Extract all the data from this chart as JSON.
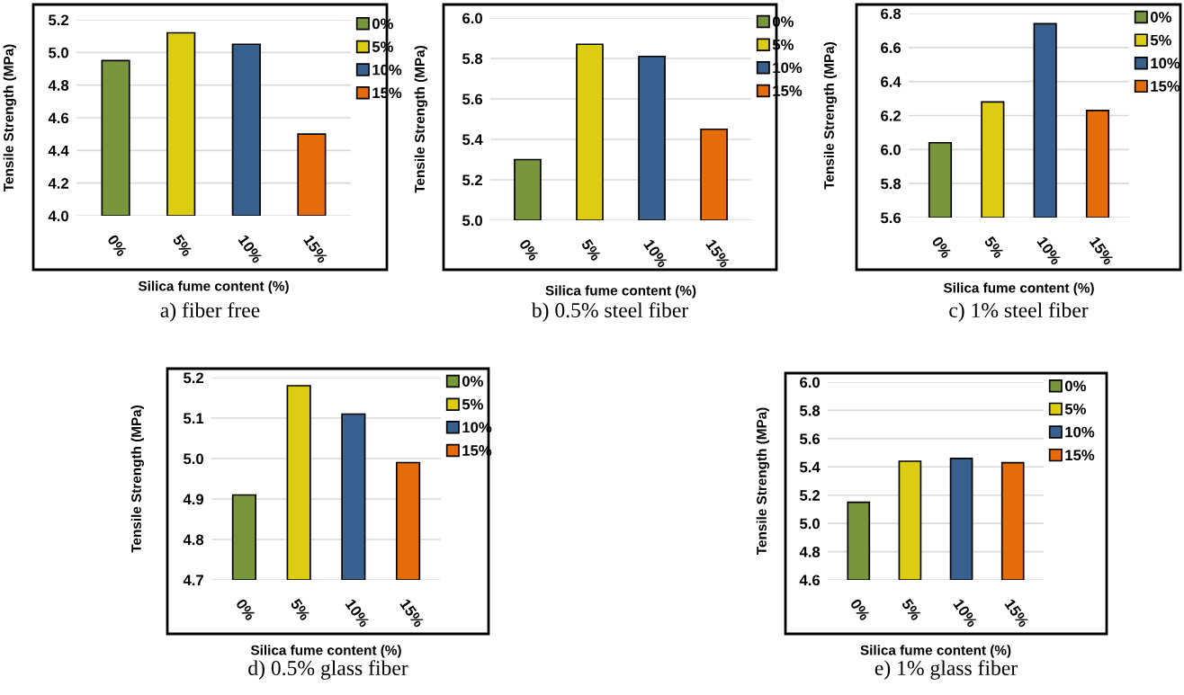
{
  "chart_data": [
    {
      "type": "bar",
      "title": "a) fiber free",
      "xlabel": "Silica fume content (%)",
      "ylabel": "Tensile Strength (MPa)",
      "categories": [
        "0%",
        "5%",
        "10%",
        "15%"
      ],
      "series": [
        {
          "name": "0%",
          "color": "#7a963c",
          "values": [
            4.95,
            null,
            null,
            null
          ]
        },
        {
          "name": "5%",
          "color": "#dccd12",
          "values": [
            null,
            5.12,
            null,
            null
          ]
        },
        {
          "name": "10%",
          "color": "#37608f",
          "values": [
            null,
            null,
            5.05,
            null
          ]
        },
        {
          "name": "15%",
          "color": "#e46c0a",
          "values": [
            null,
            null,
            null,
            4.5
          ]
        }
      ],
      "ylim": [
        4.0,
        5.2
      ],
      "yticks": [
        {
          "value": 4.0,
          "label": "4.0"
        },
        {
          "value": 4.2,
          "label": "4.2"
        },
        {
          "value": 4.4,
          "label": "4.4"
        },
        {
          "value": 4.6,
          "label": "4.6"
        },
        {
          "value": 4.8,
          "label": "4.8"
        },
        {
          "value": 5.0,
          "label": "5.0"
        },
        {
          "value": 5.2,
          "label": "5.2"
        }
      ],
      "grid": "y",
      "legend": "top right"
    },
    {
      "type": "bar",
      "title": "b) 0.5% steel fiber",
      "xlabel": "Silica fume content (%)",
      "ylabel": "Tensile Strength (MPa)",
      "categories": [
        "0%",
        "5%",
        "10%",
        "15%"
      ],
      "series": [
        {
          "name": "0%",
          "color": "#7a963c",
          "values": [
            5.3,
            null,
            null,
            null
          ]
        },
        {
          "name": "5%",
          "color": "#dccd12",
          "values": [
            null,
            5.87,
            null,
            null
          ]
        },
        {
          "name": "10%",
          "color": "#37608f",
          "values": [
            null,
            null,
            5.81,
            null
          ]
        },
        {
          "name": "15%",
          "color": "#e46c0a",
          "values": [
            null,
            null,
            null,
            5.45
          ]
        }
      ],
      "ylim": [
        5.0,
        6.0
      ],
      "yticks": [
        {
          "value": 5.0,
          "label": "5.0"
        },
        {
          "value": 5.2,
          "label": "5.2"
        },
        {
          "value": 5.4,
          "label": "5.4"
        },
        {
          "value": 5.6,
          "label": "5.6"
        },
        {
          "value": 5.8,
          "label": "5.8"
        },
        {
          "value": 6.0,
          "label": "6.0"
        }
      ],
      "grid": "y",
      "legend": "top right"
    },
    {
      "type": "bar",
      "title": "c) 1% steel fiber",
      "xlabel": "Silica fume content (%)",
      "ylabel": "Tensile Strength (MPa)",
      "categories": [
        "0%",
        "5%",
        "10%",
        "15%"
      ],
      "series": [
        {
          "name": "0%",
          "color": "#7a963c",
          "values": [
            6.04,
            null,
            null,
            null
          ]
        },
        {
          "name": "5%",
          "color": "#dccd12",
          "values": [
            null,
            6.28,
            null,
            null
          ]
        },
        {
          "name": "10%",
          "color": "#37608f",
          "values": [
            null,
            null,
            6.74,
            null
          ]
        },
        {
          "name": "15%",
          "color": "#e46c0a",
          "values": [
            null,
            null,
            null,
            6.23
          ]
        }
      ],
      "ylim": [
        5.6,
        6.8
      ],
      "yticks": [
        {
          "value": 5.6,
          "label": "5.6"
        },
        {
          "value": 5.8,
          "label": "5.8"
        },
        {
          "value": 6.0,
          "label": "6.0"
        },
        {
          "value": 6.2,
          "label": "6.2"
        },
        {
          "value": 6.4,
          "label": "6.4"
        },
        {
          "value": 6.6,
          "label": "6.6"
        },
        {
          "value": 6.8,
          "label": "6.8"
        }
      ],
      "grid": "y",
      "legend": "top right"
    },
    {
      "type": "bar",
      "title": "d) 0.5% glass fiber",
      "xlabel": "Silica fume content (%)",
      "ylabel": "Tensile Strength (MPa)",
      "categories": [
        "0%",
        "5%",
        "10%",
        "15%"
      ],
      "series": [
        {
          "name": "0%",
          "color": "#7a963c",
          "values": [
            4.91,
            null,
            null,
            null
          ]
        },
        {
          "name": "5%",
          "color": "#dccd12",
          "values": [
            null,
            5.18,
            null,
            null
          ]
        },
        {
          "name": "10%",
          "color": "#37608f",
          "values": [
            null,
            null,
            5.11,
            null
          ]
        },
        {
          "name": "15%",
          "color": "#e46c0a",
          "values": [
            null,
            null,
            null,
            4.99
          ]
        }
      ],
      "ylim": [
        4.7,
        5.2
      ],
      "yticks": [
        {
          "value": 4.7,
          "label": "4.7"
        },
        {
          "value": 4.8,
          "label": "4.8"
        },
        {
          "value": 4.9,
          "label": "4.9"
        },
        {
          "value": 5.0,
          "label": "5.0"
        },
        {
          "value": 5.1,
          "label": "5.1"
        },
        {
          "value": 5.2,
          "label": "5.2"
        }
      ],
      "grid": "y",
      "legend": "top right"
    },
    {
      "type": "bar",
      "title": "e) 1% glass fiber",
      "xlabel": "Silica fume content (%)",
      "ylabel": "Tensile Strength (MPa)",
      "categories": [
        "0%",
        "5%",
        "10%",
        "15%"
      ],
      "series": [
        {
          "name": "0%",
          "color": "#7a963c",
          "values": [
            5.15,
            null,
            null,
            null
          ]
        },
        {
          "name": "5%",
          "color": "#dccd12",
          "values": [
            null,
            5.44,
            null,
            null
          ]
        },
        {
          "name": "10%",
          "color": "#37608f",
          "values": [
            null,
            null,
            5.46,
            null
          ]
        },
        {
          "name": "15%",
          "color": "#e46c0a",
          "values": [
            null,
            null,
            null,
            5.43
          ]
        }
      ],
      "ylim": [
        4.6,
        6.0
      ],
      "yticks": [
        {
          "value": 4.6,
          "label": "4.6"
        },
        {
          "value": 4.8,
          "label": "4.8"
        },
        {
          "value": 5.0,
          "label": "5.0"
        },
        {
          "value": 5.2,
          "label": "5.2"
        },
        {
          "value": 5.4,
          "label": "5.4"
        },
        {
          "value": 5.6,
          "label": "5.6"
        },
        {
          "value": 5.8,
          "label": "5.8"
        },
        {
          "value": 6.0,
          "label": "6.0"
        }
      ],
      "grid": "y",
      "legend": "top right"
    }
  ]
}
